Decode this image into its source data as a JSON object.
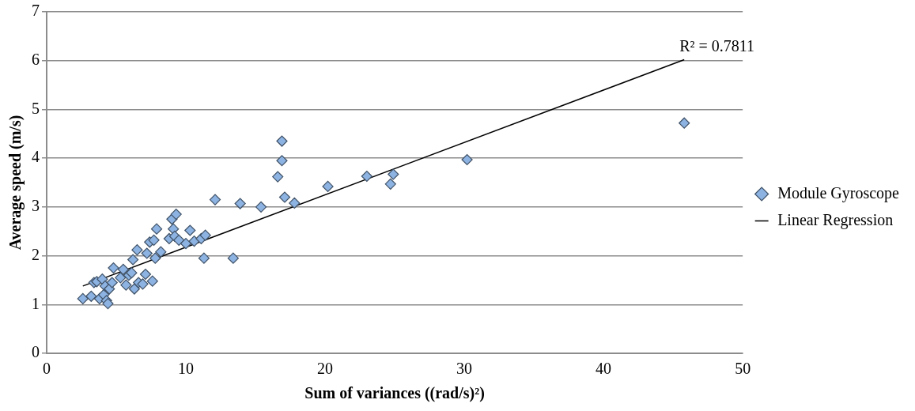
{
  "chart_data": {
    "type": "scatter",
    "xlabel": "Sum of variances ((rad/s)²)",
    "ylabel": "Average speed (m/s)",
    "xlim": [
      0,
      50
    ],
    "xticks": [
      0,
      10,
      20,
      30,
      40,
      50
    ],
    "ylim": [
      0,
      7
    ],
    "yticks": [
      0,
      1,
      2,
      3,
      4,
      5,
      6,
      7
    ],
    "grid": "y",
    "legend": "right",
    "marker": "diamond",
    "annotations": [
      "R² = 0.7811"
    ],
    "series": [
      {
        "name": "Module Gyroscope",
        "color": "#8db3e2",
        "x": [
          2.6,
          3.2,
          3.4,
          3.6,
          3.8,
          4.0,
          4.1,
          4.2,
          4.3,
          4.4,
          4.5,
          4.7,
          4.8,
          5.3,
          5.5,
          5.7,
          5.9,
          6.1,
          6.2,
          6.3,
          6.5,
          6.6,
          6.9,
          7.1,
          7.2,
          7.4,
          7.6,
          7.7,
          7.8,
          7.9,
          8.2,
          8.8,
          9.0,
          9.1,
          9.2,
          9.3,
          9.5,
          10.0,
          10.3,
          10.6,
          11.1,
          11.3,
          11.4,
          12.1,
          13.4,
          13.9,
          15.4,
          16.6,
          16.9,
          16.9,
          17.1,
          17.8,
          20.2,
          23.0,
          24.7,
          24.9,
          30.2,
          45.8
        ],
        "values": [
          1.12,
          1.17,
          1.45,
          1.47,
          1.12,
          1.52,
          1.2,
          1.38,
          1.08,
          1.02,
          1.32,
          1.45,
          1.75,
          1.55,
          1.72,
          1.4,
          1.6,
          1.65,
          1.92,
          1.32,
          2.12,
          1.45,
          1.42,
          1.62,
          2.05,
          2.28,
          1.48,
          2.32,
          1.95,
          2.55,
          2.08,
          2.35,
          2.75,
          2.55,
          2.4,
          2.85,
          2.32,
          2.25,
          2.52,
          2.3,
          2.35,
          1.95,
          2.42,
          3.15,
          1.95,
          3.07,
          3.0,
          3.62,
          3.95,
          4.35,
          3.2,
          3.08,
          3.42,
          3.63,
          3.47,
          3.67,
          3.97,
          4.72
        ]
      },
      {
        "name": "Linear Regression",
        "type": "line",
        "color": "#000000",
        "marker": "none",
        "line_style": "solid",
        "x": [
          2.6,
          45.8
        ],
        "values": [
          1.38,
          6.02
        ]
      }
    ]
  }
}
